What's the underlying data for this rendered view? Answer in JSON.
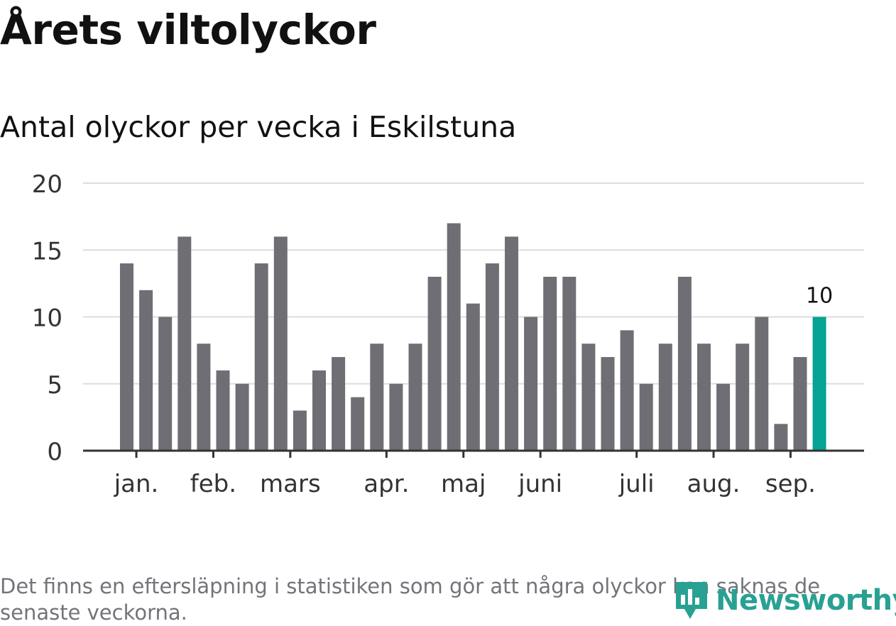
{
  "header": {
    "title": "Årets viltolyckor",
    "subtitle": "Antal olyckor per vecka i Eskilstuna"
  },
  "footer": {
    "note": "Det finns en eftersläpning i statistiken som gör att några olyckor kan saknas de senaste veckorna.",
    "brand": "Newsworthy"
  },
  "colors": {
    "bar": "#6f6e74",
    "highlight": "#06a394",
    "grid": "#dddddd",
    "axis": "#333333",
    "brand": "#28a193"
  },
  "chart_data": {
    "type": "bar",
    "title": "Antal olyckor per vecka i Eskilstuna",
    "xlabel": "",
    "ylabel": "",
    "ylim": [
      0,
      20
    ],
    "yticks": [
      0,
      5,
      10,
      15,
      20
    ],
    "grid": true,
    "month_labels": [
      {
        "label": "jan.",
        "at_bar": 0.5
      },
      {
        "label": "feb.",
        "at_bar": 4.5
      },
      {
        "label": "mars",
        "at_bar": 8.5
      },
      {
        "label": "apr.",
        "at_bar": 13.5
      },
      {
        "label": "maj",
        "at_bar": 17.5
      },
      {
        "label": "juni",
        "at_bar": 21.5
      },
      {
        "label": "juli",
        "at_bar": 26.5
      },
      {
        "label": "aug.",
        "at_bar": 30.5
      },
      {
        "label": "sep.",
        "at_bar": 34.5
      }
    ],
    "values": [
      14,
      12,
      10,
      16,
      8,
      6,
      5,
      14,
      16,
      3,
      6,
      7,
      4,
      8,
      5,
      8,
      13,
      17,
      11,
      14,
      16,
      10,
      13,
      13,
      8,
      7,
      9,
      5,
      8,
      13,
      8,
      5,
      8,
      10,
      2,
      7,
      10
    ],
    "highlight_index": 36,
    "highlight_label": "10"
  }
}
